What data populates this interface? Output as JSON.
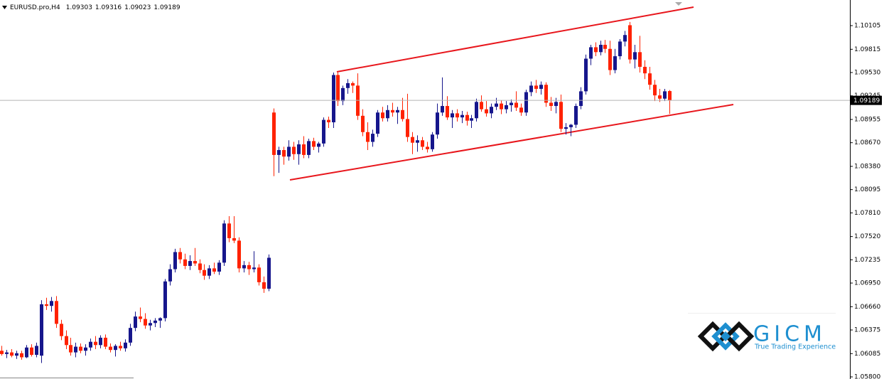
{
  "chart_data": {
    "type": "candlestick",
    "title": "EURUSD.pro,H4",
    "up_color": "#16168c",
    "down_color": "#ff2200",
    "ylim": [
      1.05774,
      1.10419
    ],
    "yticks": [
      1.10105,
      1.09815,
      {
        "value": 1.0953,
        "label": "1.09530"
      },
      1.09245,
      1.08955,
      {
        "value": 1.0867,
        "label": "1.08670"
      },
      {
        "value": 1.0838,
        "label": "1.08380"
      },
      1.08095,
      {
        "value": 1.0781,
        "label": "1.07810"
      },
      {
        "value": 1.0752,
        "label": "1.07520"
      },
      1.07235,
      {
        "value": 1.0695,
        "label": "1.06950"
      },
      {
        "value": 1.0666,
        "label": "1.06660"
      },
      1.06375,
      1.06085,
      {
        "value": 1.058,
        "label": "1.05800"
      }
    ],
    "candles": [
      [
        1.0612,
        1.0618,
        1.0606,
        1.0608
      ],
      [
        1.0608,
        1.0613,
        1.0603,
        1.061
      ],
      [
        1.061,
        1.0614,
        1.0604,
        1.0606
      ],
      [
        1.0606,
        1.0612,
        1.0602,
        1.0609
      ],
      [
        1.0609,
        1.0612,
        1.0601,
        1.0604
      ],
      [
        1.0604,
        1.0619,
        1.0603,
        1.0616
      ],
      [
        1.0616,
        1.062,
        1.0605,
        1.0607
      ],
      [
        1.0607,
        1.0622,
        1.0604,
        1.0618
      ],
      [
        1.0606,
        1.0674,
        1.0597,
        1.0669
      ],
      [
        1.0669,
        1.0677,
        1.0662,
        1.0667
      ],
      [
        1.0667,
        1.0678,
        1.066,
        1.0673
      ],
      [
        1.0673,
        1.0679,
        1.064,
        1.0645
      ],
      [
        1.0645,
        1.065,
        1.0625,
        1.063
      ],
      [
        1.063,
        1.0637,
        1.0614,
        1.0619
      ],
      [
        1.0619,
        1.0628,
        1.0606,
        1.061
      ],
      [
        1.061,
        1.0622,
        1.0604,
        1.0617
      ],
      [
        1.0617,
        1.0621,
        1.0609,
        1.0612
      ],
      [
        1.0612,
        1.062,
        1.0606,
        1.0616
      ],
      [
        1.0616,
        1.0627,
        1.0612,
        1.0623
      ],
      [
        1.0623,
        1.063,
        1.0614,
        1.0619
      ],
      [
        1.0619,
        1.0631,
        1.0615,
        1.0628
      ],
      [
        1.0628,
        1.0632,
        1.0614,
        1.0617
      ],
      [
        1.0617,
        1.0621,
        1.061,
        1.0613
      ],
      [
        1.0613,
        1.062,
        1.0605,
        1.0618
      ],
      [
        1.0618,
        1.0623,
        1.0612,
        1.0615
      ],
      [
        1.0615,
        1.0626,
        1.0611,
        1.0622
      ],
      [
        1.0622,
        1.0645,
        1.0618,
        1.064
      ],
      [
        1.064,
        1.066,
        1.0636,
        1.0654
      ],
      [
        1.0654,
        1.0665,
        1.0647,
        1.0651
      ],
      [
        1.0651,
        1.0658,
        1.0639,
        1.0643
      ],
      [
        1.0643,
        1.065,
        1.0637,
        1.0646
      ],
      [
        1.0646,
        1.0652,
        1.0641,
        1.0649
      ],
      [
        1.0649,
        1.0653,
        1.064,
        1.0652
      ],
      [
        1.0652,
        1.07,
        1.0648,
        1.0697
      ],
      [
        1.0697,
        1.0718,
        1.0692,
        1.0712
      ],
      [
        1.0712,
        1.0737,
        1.0708,
        1.0733
      ],
      [
        1.0733,
        1.0738,
        1.0719,
        1.0724
      ],
      [
        1.0724,
        1.0731,
        1.0712,
        1.0716
      ],
      [
        1.0716,
        1.0729,
        1.0711,
        1.0722
      ],
      [
        1.0722,
        1.0738,
        1.0716,
        1.0719
      ],
      [
        1.0719,
        1.0724,
        1.0707,
        1.0711
      ],
      [
        1.0711,
        1.0718,
        1.0699,
        1.0704
      ],
      [
        1.0704,
        1.0717,
        1.07,
        1.0713
      ],
      [
        1.0713,
        1.072,
        1.0706,
        1.0709
      ],
      [
        1.0709,
        1.0723,
        1.0705,
        1.072
      ],
      [
        1.072,
        1.0772,
        1.0716,
        1.0768
      ],
      [
        1.0768,
        1.0777,
        1.0745,
        1.075
      ],
      [
        1.075,
        1.0777,
        1.0744,
        1.0747
      ],
      [
        1.0747,
        1.0751,
        1.0708,
        1.0713
      ],
      [
        1.0713,
        1.0722,
        1.0708,
        1.0717
      ],
      [
        1.0717,
        1.0721,
        1.0705,
        1.0712
      ],
      [
        1.0712,
        1.0734,
        1.0708,
        1.0714
      ],
      [
        1.0714,
        1.0718,
        1.0692,
        1.0696
      ],
      [
        1.0696,
        1.0703,
        1.0683,
        1.0688
      ],
      [
        1.0688,
        1.073,
        1.0685,
        1.0726
      ],
      [
        1.0904,
        1.0909,
        1.0826,
        1.0852
      ],
      [
        1.0852,
        1.0862,
        1.083,
        1.0858
      ],
      [
        1.0858,
        1.0862,
        1.084,
        1.085
      ],
      [
        1.085,
        1.087,
        1.0845,
        1.0862
      ],
      [
        1.0862,
        1.0868,
        1.0846,
        1.0853
      ],
      [
        1.0853,
        1.087,
        1.084,
        1.0865
      ],
      [
        1.0865,
        1.0875,
        1.0848,
        1.0852
      ],
      [
        1.0852,
        1.0872,
        1.0848,
        1.0869
      ],
      [
        1.0869,
        1.0873,
        1.0858,
        1.0862
      ],
      [
        1.0862,
        1.0868,
        1.0855,
        1.0866
      ],
      [
        1.0866,
        1.0898,
        1.0862,
        1.0895
      ],
      [
        1.0895,
        1.0899,
        1.0885,
        1.0892
      ],
      [
        1.0892,
        1.0953,
        1.0885,
        1.095
      ],
      [
        1.095,
        1.0953,
        1.0912,
        1.0918
      ],
      [
        1.0918,
        1.0937,
        1.0913,
        1.0934
      ],
      [
        1.0934,
        1.0945,
        1.0927,
        1.094
      ],
      [
        1.094,
        1.0942,
        1.0928,
        1.0937
      ],
      [
        1.0937,
        1.0952,
        1.0895,
        1.09
      ],
      [
        1.09,
        1.0908,
        1.0875,
        1.088
      ],
      [
        1.088,
        1.0892,
        1.0858,
        1.0868
      ],
      [
        1.0868,
        1.0883,
        1.0862,
        1.0878
      ],
      [
        1.0878,
        1.0907,
        1.0874,
        1.0904
      ],
      [
        1.0904,
        1.0911,
        1.0893,
        1.0897
      ],
      [
        1.0897,
        1.0913,
        1.0893,
        1.0907
      ],
      [
        1.0907,
        1.0916,
        1.0899,
        1.0904
      ],
      [
        1.0904,
        1.0911,
        1.089,
        1.0907
      ],
      [
        1.0907,
        1.0922,
        1.0893,
        1.0896
      ],
      [
        1.0896,
        1.0927,
        1.0868,
        1.0874
      ],
      [
        1.0874,
        1.088,
        1.0853,
        1.0867
      ],
      [
        1.0867,
        1.0876,
        1.0856,
        1.087
      ],
      [
        1.087,
        1.0874,
        1.0858,
        1.0862
      ],
      [
        1.0862,
        1.0868,
        1.0855,
        1.0859
      ],
      [
        1.0859,
        1.088,
        1.0856,
        1.0877
      ],
      [
        1.0877,
        1.0915,
        1.0872,
        1.0904
      ],
      [
        1.0904,
        1.0947,
        1.09,
        1.0912
      ],
      [
        1.0912,
        1.0924,
        1.0895,
        1.0898
      ],
      [
        1.0898,
        1.0907,
        1.0885,
        1.0903
      ],
      [
        1.0903,
        1.0908,
        1.0893,
        1.0898
      ],
      [
        1.0898,
        1.0906,
        1.0891,
        1.0901
      ],
      [
        1.0901,
        1.0905,
        1.0888,
        1.0894
      ],
      [
        1.0894,
        1.0901,
        1.0885,
        1.0897
      ],
      [
        1.0897,
        1.0921,
        1.0893,
        1.0917
      ],
      [
        1.0917,
        1.0925,
        1.0905,
        1.0908
      ],
      [
        1.0908,
        1.0918,
        1.0899,
        1.0903
      ],
      [
        1.0903,
        1.0915,
        1.0897,
        1.0911
      ],
      [
        1.0911,
        1.0922,
        1.0907,
        1.0915
      ],
      [
        1.0915,
        1.0919,
        1.0902,
        1.0908
      ],
      [
        1.0908,
        1.0918,
        1.0903,
        1.0913
      ],
      [
        1.0913,
        1.092,
        1.0905,
        1.0916
      ],
      [
        1.0916,
        1.093,
        1.0906,
        1.091
      ],
      [
        1.091,
        1.0915,
        1.09,
        1.0904
      ],
      [
        1.0904,
        1.0932,
        1.09,
        1.0929
      ],
      [
        1.0929,
        1.0942,
        1.0924,
        1.0937
      ],
      [
        1.0937,
        1.0944,
        1.0928,
        1.0933
      ],
      [
        1.0933,
        1.0942,
        1.0926,
        1.0938
      ],
      [
        1.0938,
        1.0941,
        1.0911,
        1.0916
      ],
      [
        1.0916,
        1.0923,
        1.0906,
        1.0912
      ],
      [
        1.0912,
        1.0922,
        1.0903,
        1.0917
      ],
      [
        1.0917,
        1.0926,
        1.088,
        1.0884
      ],
      [
        1.0884,
        1.0891,
        1.0877,
        1.0886
      ],
      [
        1.0886,
        1.089,
        1.0875,
        1.0889
      ],
      [
        1.0889,
        1.0915,
        1.0885,
        1.0912
      ],
      [
        1.0912,
        1.0935,
        1.0908,
        1.093
      ],
      [
        1.093,
        1.0975,
        1.0926,
        1.097
      ],
      [
        1.097,
        1.0987,
        1.0962,
        1.0984
      ],
      [
        1.0984,
        1.099,
        1.0973,
        1.0978
      ],
      [
        1.0978,
        1.0992,
        1.0974,
        1.0987
      ],
      [
        1.0987,
        1.0993,
        1.0977,
        1.0982
      ],
      [
        1.0982,
        1.0992,
        1.095,
        1.0956
      ],
      [
        1.0956,
        1.0982,
        1.0952,
        1.0973
      ],
      [
        1.0973,
        1.0994,
        1.0969,
        1.0991
      ],
      [
        1.0991,
        1.1004,
        1.0985,
        1.0999
      ],
      [
        1.1011,
        1.1015,
        1.0964,
        1.0969
      ],
      [
        1.0969,
        1.0987,
        1.0958,
        1.0978
      ],
      [
        1.0978,
        1.0998,
        1.0953,
        1.096
      ],
      [
        1.096,
        1.0968,
        1.0945,
        1.0952
      ],
      [
        1.0952,
        1.096,
        1.0932,
        1.0938
      ],
      [
        1.0938,
        1.0944,
        1.0918,
        1.0925
      ],
      [
        1.0925,
        1.0933,
        1.0917,
        1.0921
      ],
      [
        1.0921,
        1.0933,
        1.0918,
        1.093
      ],
      [
        1.09303,
        1.09316,
        1.09023,
        1.09189
      ]
    ]
  },
  "logo": {
    "name": "GICM",
    "tagline": "True Trading Experience"
  }
}
